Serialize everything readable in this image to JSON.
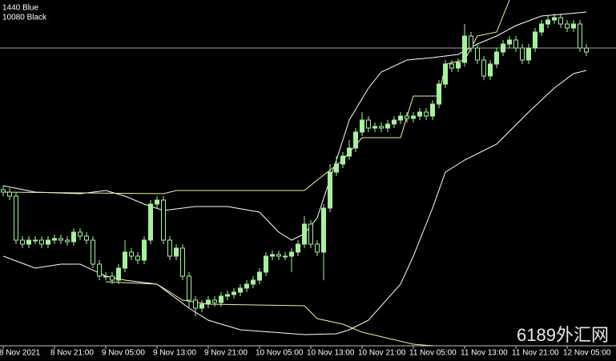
{
  "chart_data": {
    "type": "candlestick",
    "labels": [
      "1440 Blue",
      "10080 Black"
    ],
    "watermark": "6189外汇网",
    "candle_color": "#a8f0a0",
    "open": [
      195,
      192,
      187,
      132,
      127,
      132,
      132,
      127,
      132,
      134,
      132,
      130,
      142,
      137,
      132,
      102,
      87,
      87,
      82,
      97,
      117,
      112,
      107,
      132,
      177,
      182,
      132,
      112,
      122,
      87,
      57,
      47,
      52,
      57,
      54,
      62,
      64,
      67,
      72,
      77,
      82,
      92,
      112,
      114,
      112,
      112,
      117,
      127,
      152,
      127,
      117,
      172,
      217,
      227,
      237,
      247,
      267,
      282,
      272,
      274,
      272,
      277,
      282,
      287,
      284,
      287,
      292,
      287,
      302,
      327,
      352,
      347,
      354,
      387,
      372,
      357,
      337,
      352,
      367,
      377,
      382,
      372,
      357,
      372,
      392,
      402,
      407,
      410,
      402,
      397,
      402,
      372
    ],
    "high": [
      200,
      197,
      192,
      137,
      137,
      137,
      137,
      137,
      139,
      139,
      137,
      147,
      147,
      142,
      137,
      107,
      92,
      92,
      102,
      132,
      122,
      117,
      137,
      182,
      187,
      187,
      137,
      127,
      127,
      92,
      62,
      57,
      62,
      62,
      67,
      69,
      72,
      77,
      82,
      87,
      97,
      117,
      119,
      119,
      117,
      122,
      132,
      162,
      157,
      132,
      177,
      227,
      237,
      242,
      257,
      272,
      292,
      287,
      279,
      279,
      282,
      287,
      292,
      292,
      292,
      297,
      297,
      307,
      332,
      357,
      357,
      359,
      402,
      392,
      377,
      362,
      357,
      372,
      382,
      387,
      387,
      377,
      377,
      397,
      407,
      412,
      415,
      415,
      407,
      407,
      407,
      377
    ],
    "low": [
      187,
      182,
      127,
      122,
      122,
      127,
      122,
      122,
      127,
      127,
      125,
      125,
      132,
      127,
      97,
      82,
      82,
      77,
      77,
      92,
      107,
      102,
      102,
      127,
      172,
      127,
      107,
      107,
      82,
      47,
      37,
      42,
      47,
      49,
      49,
      57,
      59,
      62,
      67,
      72,
      77,
      87,
      107,
      107,
      107,
      92,
      112,
      122,
      122,
      112,
      82,
      167,
      212,
      222,
      232,
      242,
      262,
      267,
      267,
      267,
      267,
      272,
      277,
      279,
      279,
      282,
      282,
      282,
      297,
      322,
      342,
      342,
      349,
      367,
      352,
      332,
      332,
      347,
      362,
      372,
      367,
      352,
      352,
      367,
      387,
      397,
      402,
      397,
      392,
      392,
      367,
      362
    ],
    "close": [
      192,
      187,
      132,
      127,
      132,
      132,
      127,
      132,
      134,
      132,
      130,
      142,
      137,
      132,
      102,
      87,
      87,
      82,
      97,
      117,
      112,
      107,
      132,
      177,
      182,
      132,
      112,
      122,
      87,
      57,
      47,
      52,
      57,
      54,
      62,
      64,
      67,
      72,
      77,
      82,
      92,
      112,
      114,
      112,
      112,
      117,
      127,
      152,
      127,
      117,
      172,
      217,
      227,
      237,
      247,
      267,
      282,
      272,
      274,
      272,
      277,
      282,
      287,
      284,
      287,
      292,
      287,
      302,
      327,
      352,
      347,
      354,
      387,
      372,
      357,
      337,
      352,
      367,
      377,
      382,
      372,
      357,
      372,
      392,
      402,
      407,
      410,
      402,
      397,
      402,
      372,
      367
    ],
    "lines": [
      {
        "color": "#ffffff",
        "x": [
          0,
          5,
          12,
          16,
          19,
          22,
          25,
          30,
          35,
          40,
          43,
          45,
          47,
          49,
          52,
          54,
          57,
          59,
          63,
          67,
          71,
          74,
          77,
          80,
          84,
          87,
          91
        ],
        "values": [
          200,
          192,
          190,
          194,
          187,
          177,
          169,
          174,
          174,
          167,
          142,
          132,
          140,
          160,
          232,
          282,
          322,
          342,
          357,
          360,
          364,
          377,
          387,
          400,
          412,
          414,
          417
        ]
      },
      {
        "color": "#ffffff",
        "x": [
          0,
          5,
          9,
          12,
          16,
          19,
          24,
          29,
          32,
          37,
          42,
          47,
          52,
          54,
          57,
          62,
          64,
          67,
          69,
          72,
          77,
          82,
          86,
          89,
          91
        ],
        "values": [
          112,
          97,
          102,
          102,
          87,
          82,
          77,
          47,
          32,
          20,
          17,
          14,
          15,
          20,
          32,
          77,
          112,
          172,
          217,
          232,
          252,
          292,
          322,
          340,
          344
        ]
      },
      {
        "color": "#f0f0a0",
        "x": [
          0,
          25,
          27,
          47,
          49,
          53,
          56,
          62,
          64,
          68,
          69,
          72,
          74,
          77,
          79
        ],
        "values": [
          192,
          190,
          194,
          194,
          207,
          232,
          260,
          260,
          312,
          312,
          352,
          357,
          387,
          392,
          432
        ]
      },
      {
        "color": "#f0f0a0",
        "x": [
          16,
          24,
          28,
          32,
          47,
          49,
          53,
          56,
          64,
          67
        ],
        "values": [
          80,
          77,
          57,
          52,
          50,
          34,
          27,
          17,
          2,
          0
        ]
      }
    ],
    "hline": {
      "value": 372,
      "color": "#a0a0a0"
    },
    "xlim": [
      -0.5,
      95.625
    ],
    "ylim": [
      0,
      432
    ],
    "xticks": [
      {
        "value": 0,
        "label": "8 Nov 2021"
      },
      {
        "value": 8,
        "label": "8 Nov 21:00"
      },
      {
        "value": 16,
        "label": "9 Nov 05:00"
      },
      {
        "value": 24,
        "label": "9 Nov 13:00"
      },
      {
        "value": 32,
        "label": "9 Nov 21:00"
      },
      {
        "value": 40,
        "label": "10 Nov 05:00"
      },
      {
        "value": 48,
        "label": "10 Nov 13:00"
      },
      {
        "value": 56,
        "label": "10 Nov 21:00"
      },
      {
        "value": 64,
        "label": "11 Nov 05:00"
      },
      {
        "value": 72,
        "label": "11 Nov 13:00"
      },
      {
        "value": 80,
        "label": "11 Nov 21:00"
      },
      {
        "value": 88,
        "label": "12 Nov 05:00"
      }
    ]
  }
}
